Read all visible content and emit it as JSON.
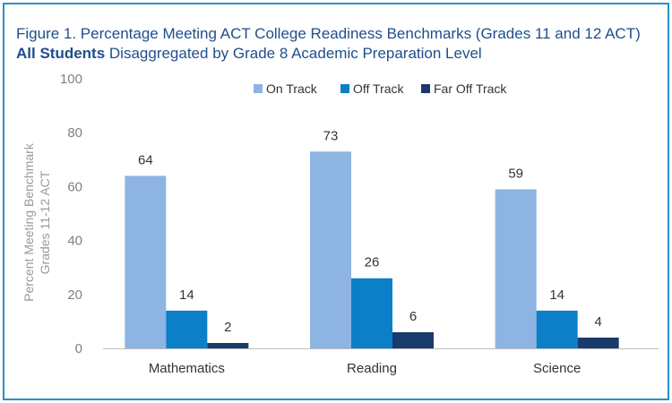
{
  "figure": {
    "title_line1": "Figure 1. Percentage Meeting ACT College Readiness Benchmarks (Grades 11 and 12 ACT)",
    "title_line2_bold": "All Students",
    "title_line2_rest": " Disaggregated by Grade 8 Academic Preparation Level"
  },
  "colors": {
    "On Track": "#8db4e2",
    "Off Track": "#0b7fc7",
    "Far Off Track": "#1a3a6b",
    "frame": "#2a8fc8",
    "title": "#1f4e8c"
  },
  "chart_data": {
    "type": "bar",
    "categories": [
      "Mathematics",
      "Reading",
      "Science"
    ],
    "series": [
      {
        "name": "On Track",
        "values": [
          64,
          73,
          59
        ]
      },
      {
        "name": "Off Track",
        "values": [
          14,
          26,
          14
        ]
      },
      {
        "name": "Far Off Track",
        "values": [
          2,
          6,
          4
        ]
      }
    ],
    "title": "Figure 1. Percentage Meeting ACT College Readiness Benchmarks (Grades 11 and 12 ACT)",
    "ylabel_lines": [
      "Percent Meeting Benchmark",
      "Grades 11-12 ACT"
    ],
    "xlabel": "",
    "ylim": [
      0,
      100
    ],
    "yticks": [
      0,
      20,
      40,
      60,
      80,
      100
    ],
    "legend_position": "top",
    "grid": false,
    "data_labels": true
  }
}
